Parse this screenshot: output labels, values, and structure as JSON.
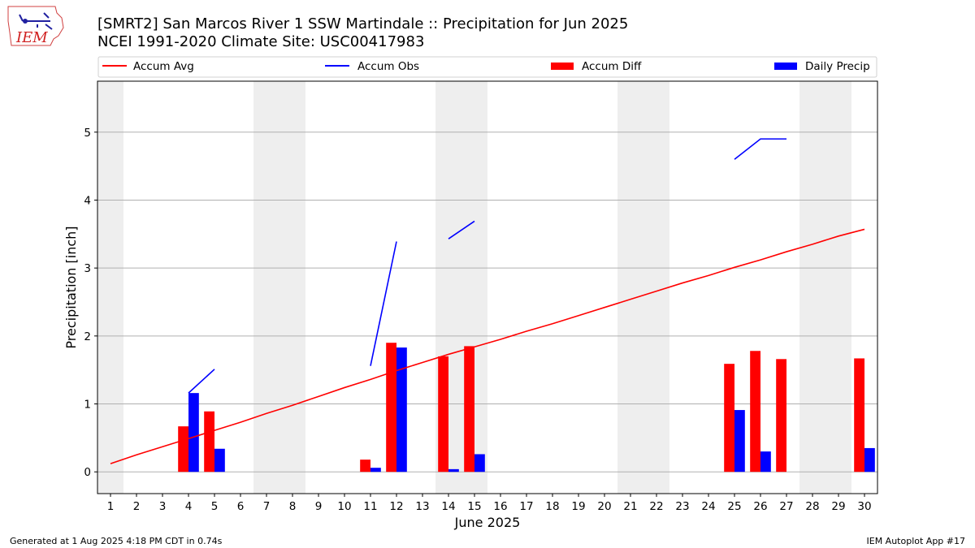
{
  "title": {
    "line1": "[SMRT2] San Marcos River 1 SSW Martindale :: Precipitation for Jun 2025",
    "line2": "NCEI 1991-2020 Climate Site: USC00417983"
  },
  "logo": {
    "text": "IEM"
  },
  "footer": {
    "left": "Generated at 1 Aug 2025 4:18 PM CDT in 0.74s",
    "right": "IEM Autoplot App #17"
  },
  "colors": {
    "accum_avg": "#ff0000",
    "accum_obs": "#0000ff",
    "accum_diff": "#ff0000",
    "daily_precip": "#0000ff",
    "weekend_shade": "#eeeeee",
    "grid": "#b0b0b0"
  },
  "chart_data": {
    "type": "bar",
    "xlabel": "June 2025",
    "ylabel": "Precipitation [inch]",
    "xlim": [
      0.5,
      30.5
    ],
    "ylim": [
      -0.32,
      5.75
    ],
    "x_ticks": [
      1,
      2,
      3,
      4,
      5,
      6,
      7,
      8,
      9,
      10,
      11,
      12,
      13,
      14,
      15,
      16,
      17,
      18,
      19,
      20,
      21,
      22,
      23,
      24,
      25,
      26,
      27,
      28,
      29,
      30
    ],
    "y_ticks": [
      0,
      1,
      2,
      3,
      4,
      5
    ],
    "grid": "horizontal",
    "legend_position": "top",
    "legend": [
      "Accum Avg",
      "Accum Obs",
      "Accum Diff",
      "Daily Precip"
    ],
    "weekend_days": [
      1,
      7,
      8,
      14,
      15,
      21,
      22,
      28,
      29
    ],
    "series": [
      {
        "name": "Accum Avg",
        "type": "line",
        "x": [
          1,
          2,
          3,
          4,
          5,
          6,
          7,
          8,
          9,
          10,
          11,
          12,
          13,
          14,
          15,
          16,
          17,
          18,
          19,
          20,
          21,
          22,
          23,
          24,
          25,
          26,
          27,
          28,
          29,
          30
        ],
        "values": [
          0.12,
          0.25,
          0.37,
          0.49,
          0.61,
          0.73,
          0.86,
          0.98,
          1.11,
          1.24,
          1.36,
          1.49,
          1.61,
          1.73,
          1.84,
          1.95,
          2.07,
          2.18,
          2.3,
          2.42,
          2.54,
          2.66,
          2.78,
          2.89,
          3.01,
          3.12,
          3.24,
          3.35,
          3.47,
          3.57
        ]
      },
      {
        "name": "Accum Obs",
        "type": "line",
        "segments": [
          {
            "x": [
              4,
              5
            ],
            "values": [
              1.16,
              1.51
            ]
          },
          {
            "x": [
              11,
              12
            ],
            "values": [
              1.56,
              3.39
            ]
          },
          {
            "x": [
              14,
              15
            ],
            "values": [
              3.43,
              3.69
            ]
          },
          {
            "x": [
              25,
              26,
              27
            ],
            "values": [
              4.6,
              4.9,
              4.9
            ]
          }
        ]
      },
      {
        "name": "Accum Diff",
        "type": "bar",
        "x": [
          4,
          5,
          11,
          12,
          14,
          15,
          25,
          26,
          27,
          30
        ],
        "values": [
          0.67,
          0.89,
          0.18,
          1.9,
          1.7,
          1.85,
          1.59,
          1.78,
          1.66,
          1.67
        ]
      },
      {
        "name": "Daily Precip",
        "type": "bar",
        "x": [
          4,
          5,
          11,
          12,
          14,
          15,
          25,
          26,
          30
        ],
        "values": [
          1.16,
          0.34,
          0.06,
          1.83,
          0.04,
          0.26,
          0.91,
          0.3,
          0.35
        ]
      }
    ]
  }
}
